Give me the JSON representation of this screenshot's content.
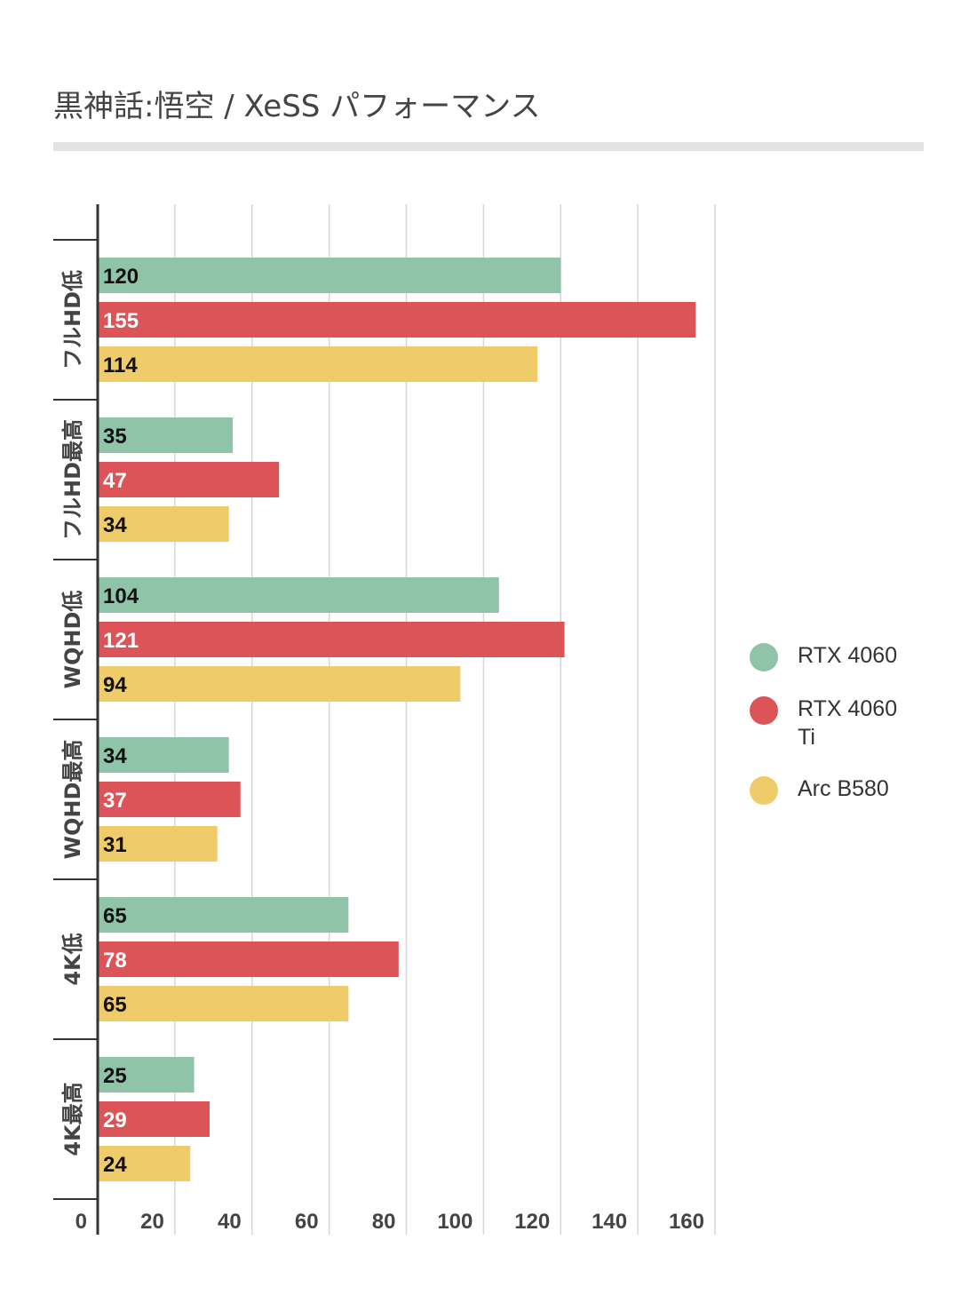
{
  "chart_data": {
    "type": "bar",
    "orientation": "horizontal",
    "title": "黒神話:悟空 /  XeSS パフォーマンス",
    "categories": [
      "フルHD低",
      "フルHD最高",
      "WQHD低",
      "WQHD最高",
      "4K低",
      "4K最高"
    ],
    "series": [
      {
        "name": "RTX 4060",
        "color": "#8fc4a8",
        "label_color": "#111111",
        "values": [
          120,
          35,
          104,
          34,
          65,
          25
        ]
      },
      {
        "name": "RTX 4060 Ti",
        "color": "#dc5457",
        "label_color": "#ffffff",
        "values": [
          155,
          47,
          121,
          37,
          78,
          29
        ]
      },
      {
        "name": "Arc B580",
        "color": "#efcb69",
        "label_color": "#111111",
        "values": [
          114,
          34,
          94,
          31,
          65,
          24
        ]
      }
    ],
    "xlim": [
      0,
      160
    ],
    "xticks": [
      0,
      20,
      40,
      60,
      80,
      100,
      120,
      140,
      160
    ],
    "grid": true,
    "legend_position": "right"
  }
}
